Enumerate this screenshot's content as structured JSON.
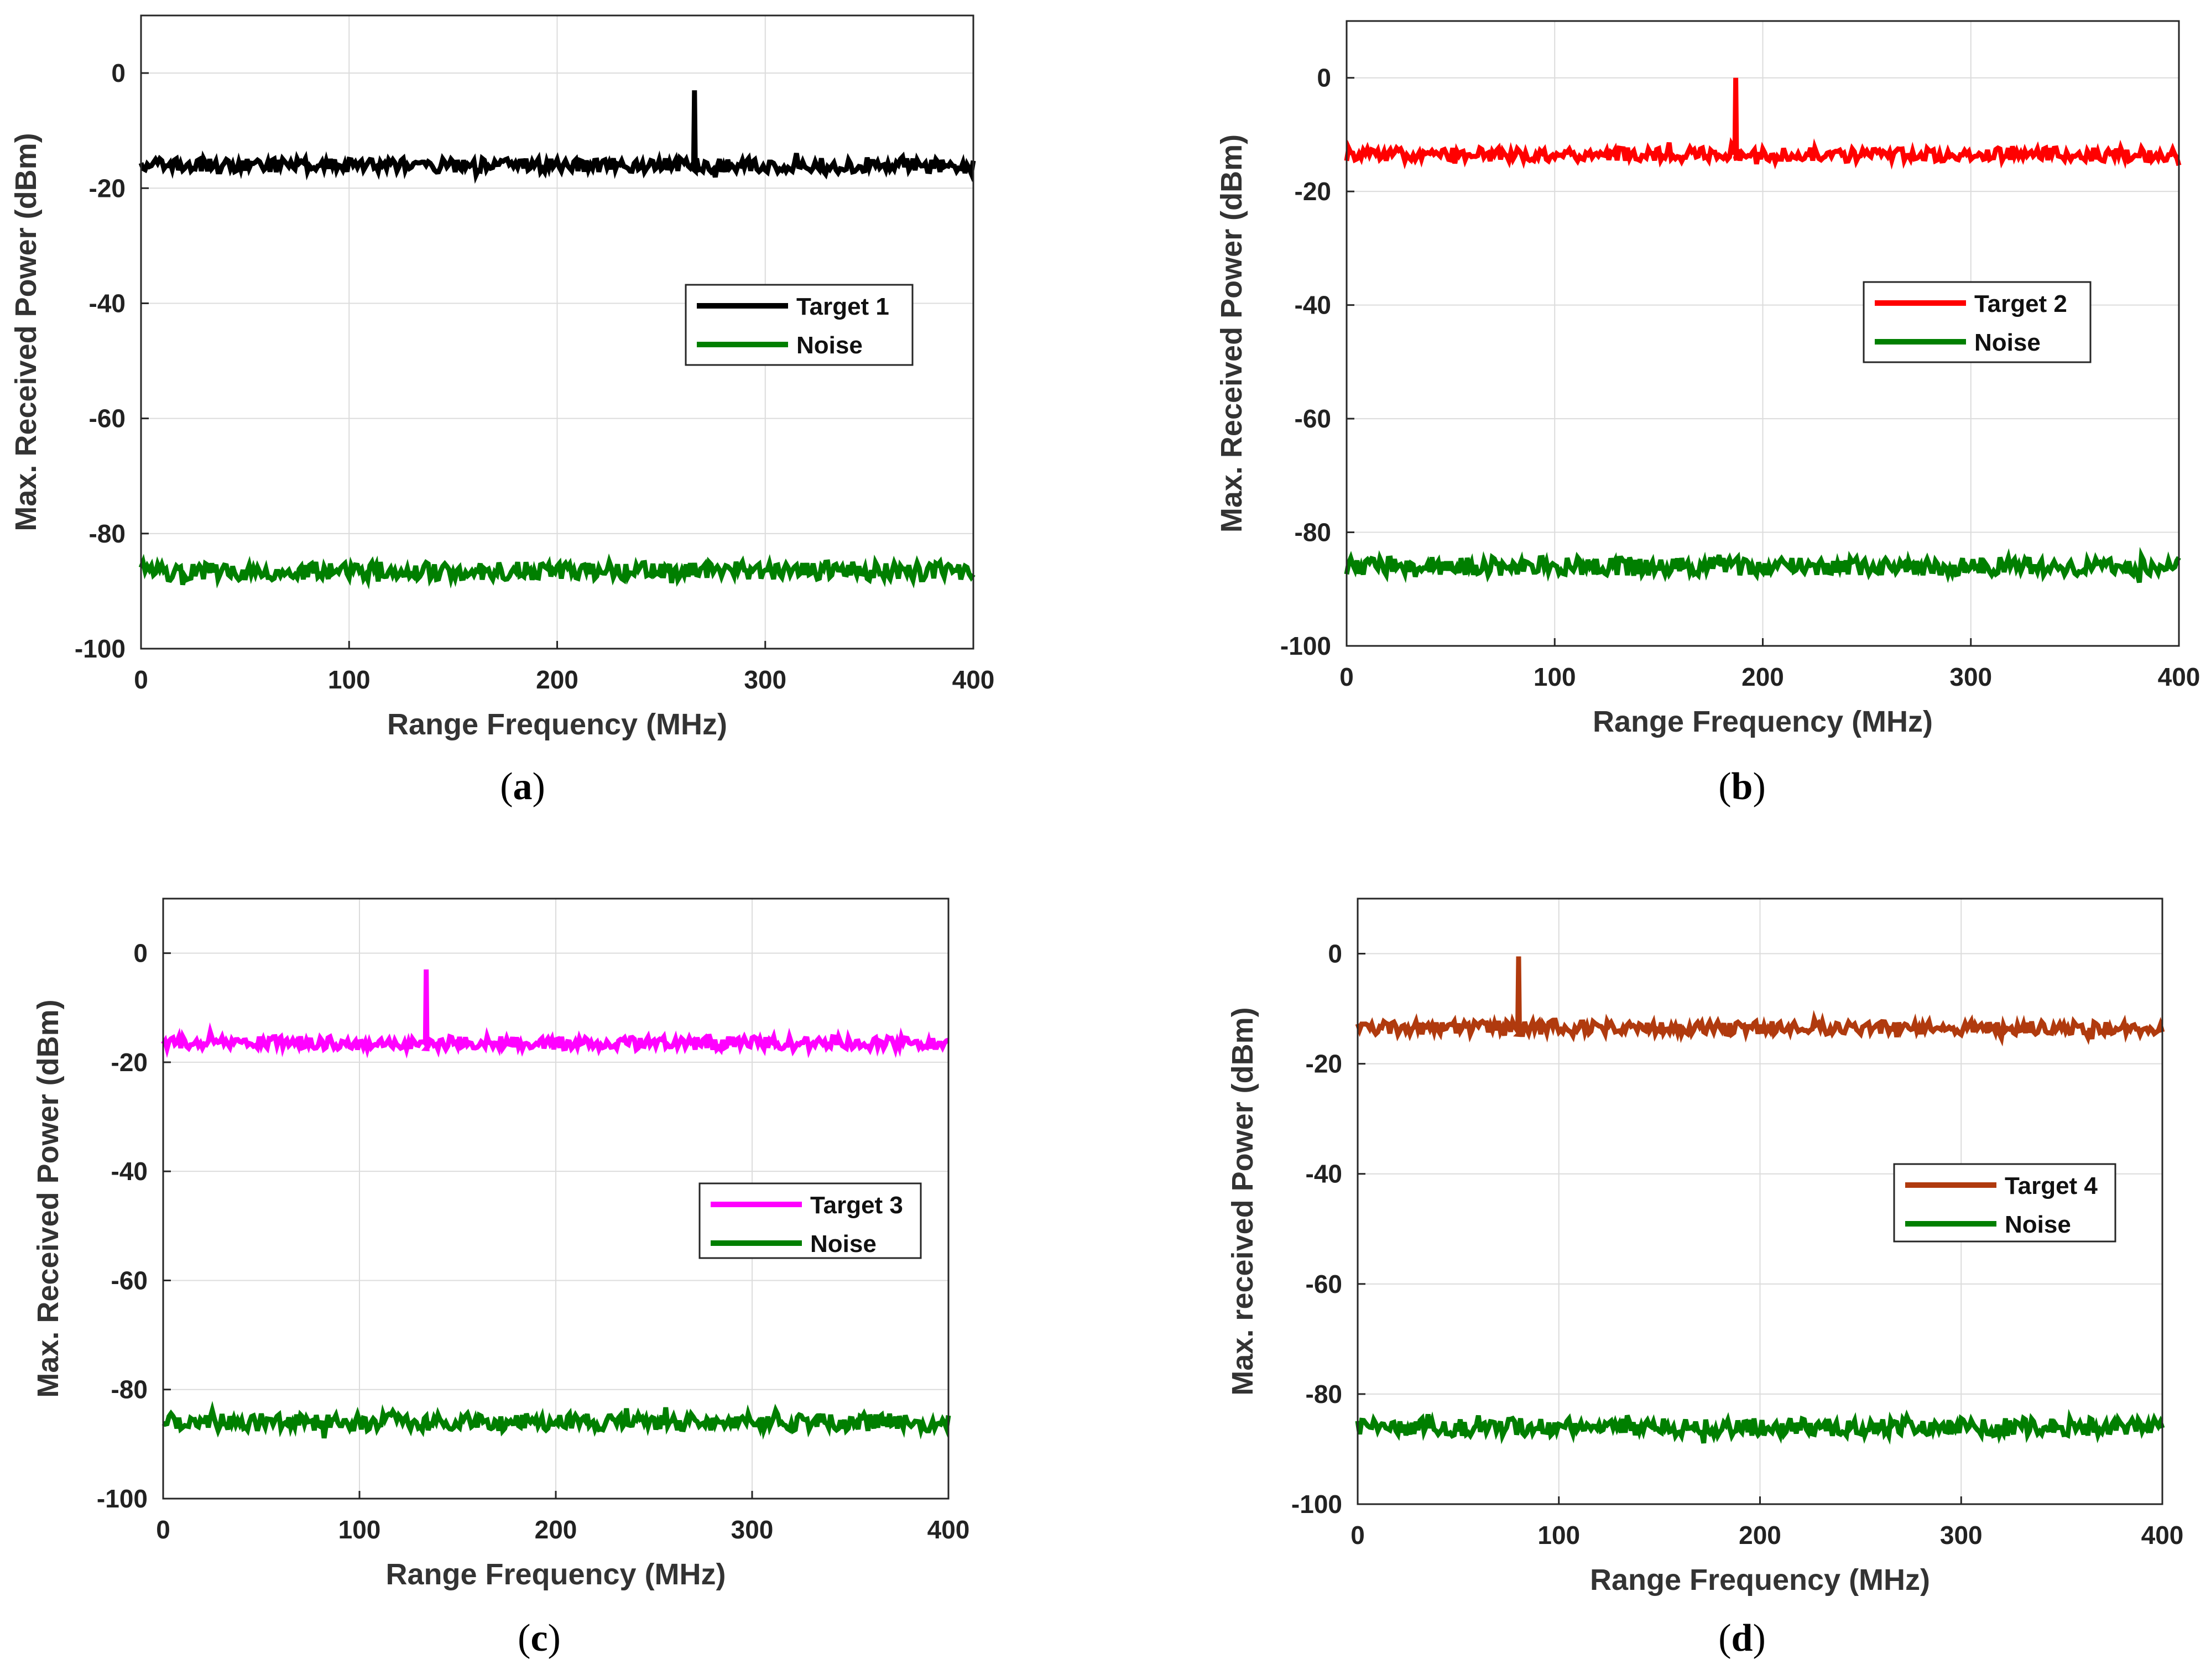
{
  "chart_data": [
    {
      "type": "line",
      "panel_label": "a",
      "xlabel": "Range Frequency (MHz)",
      "ylabel": "Max. Received Power (dBm)",
      "xlim": [
        0,
        400
      ],
      "ylim": [
        -100,
        10
      ],
      "xticks": [
        0,
        100,
        200,
        300,
        400
      ],
      "yticks": [
        -100,
        -80,
        -60,
        -40,
        -20,
        0
      ],
      "grid": true,
      "legend_position": "center-right",
      "series": [
        {
          "name": "Target 1",
          "color": "#000000",
          "baseline": -16,
          "jitter": 1.2,
          "peak_x": 266,
          "peak_y": -3
        },
        {
          "name": "Noise",
          "color": "#007f00",
          "baseline": -86.5,
          "jitter": 1.6
        }
      ]
    },
    {
      "type": "line",
      "panel_label": "b",
      "xlabel": "Range Frequency (MHz)",
      "ylabel": "Max. Received Power (dBm)",
      "xlim": [
        0,
        400
      ],
      "ylim": [
        -100,
        10
      ],
      "xticks": [
        0,
        100,
        200,
        300,
        400
      ],
      "yticks": [
        -100,
        -80,
        -60,
        -40,
        -20,
        0
      ],
      "grid": true,
      "legend_position": "center-right",
      "series": [
        {
          "name": "Target 2",
          "color": "#ff0000",
          "baseline": -13.5,
          "jitter": 1.2,
          "peak_x": 187,
          "peak_y": 0
        },
        {
          "name": "Noise",
          "color": "#007f00",
          "baseline": -86,
          "jitter": 1.6
        }
      ]
    },
    {
      "type": "line",
      "panel_label": "c",
      "xlabel": "Range Frequency (MHz)",
      "ylabel": "Max. Received Power (dBm)",
      "xlim": [
        0,
        400
      ],
      "ylim": [
        -100,
        10
      ],
      "xticks": [
        0,
        100,
        200,
        300,
        400
      ],
      "yticks": [
        -100,
        -80,
        -60,
        -40,
        -20,
        0
      ],
      "grid": true,
      "legend_position": "center-right",
      "series": [
        {
          "name": "Target 3",
          "color": "#ff00ff",
          "baseline": -16.5,
          "jitter": 1.2,
          "peak_x": 134,
          "peak_y": -3
        },
        {
          "name": "Noise",
          "color": "#007f00",
          "baseline": -86,
          "jitter": 1.6
        }
      ]
    },
    {
      "type": "line",
      "panel_label": "d",
      "xlabel": "Range Frequency (MHz)",
      "ylabel": "Max. received Power (dBm)",
      "xlim": [
        0,
        400
      ],
      "ylim": [
        -100,
        10
      ],
      "xticks": [
        0,
        100,
        200,
        300,
        400
      ],
      "yticks": [
        -100,
        -80,
        -60,
        -40,
        -20,
        0
      ],
      "grid": true,
      "legend_position": "center-right",
      "series": [
        {
          "name": "Target 4",
          "color": "#b03a0e",
          "baseline": -13.5,
          "jitter": 1.2,
          "peak_x": 80,
          "peak_y": -0.5
        },
        {
          "name": "Noise",
          "color": "#007f00",
          "baseline": -86,
          "jitter": 1.6
        }
      ]
    }
  ]
}
